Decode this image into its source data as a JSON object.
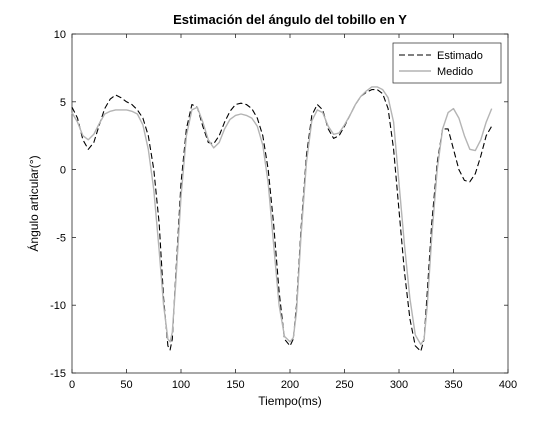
{
  "chart_data": {
    "type": "line",
    "title": "Estimación del ángulo del tobillo en Y",
    "xlabel": "Tiempo(ms)",
    "ylabel": "Ángulo articular(°)",
    "xlim": [
      0,
      400
    ],
    "ylim": [
      -15,
      10
    ],
    "xticks": [
      0,
      50,
      100,
      150,
      200,
      250,
      300,
      350,
      400
    ],
    "yticks": [
      -15,
      -10,
      -5,
      0,
      5,
      10
    ],
    "grid": false,
    "legend_position": "top-right",
    "series": [
      {
        "name": "Estimado",
        "style": "dashed",
        "color": "#000000",
        "x": [
          0,
          5,
          10,
          15,
          20,
          25,
          30,
          35,
          40,
          45,
          50,
          55,
          60,
          65,
          70,
          75,
          80,
          84,
          88,
          90,
          92,
          95,
          100,
          105,
          110,
          115,
          120,
          125,
          130,
          135,
          140,
          145,
          150,
          155,
          160,
          165,
          170,
          175,
          180,
          185,
          190,
          195,
          200,
          203,
          206,
          210,
          215,
          220,
          225,
          230,
          235,
          240,
          245,
          250,
          255,
          260,
          265,
          270,
          275,
          280,
          285,
          290,
          295,
          300,
          305,
          310,
          315,
          320,
          323,
          326,
          330,
          335,
          340,
          345,
          350,
          355,
          360,
          365,
          370,
          375,
          380,
          385
        ],
        "y": [
          4.6,
          3.8,
          2.2,
          1.5,
          2.0,
          3.3,
          4.5,
          5.2,
          5.5,
          5.3,
          5.0,
          4.8,
          4.4,
          3.8,
          2.5,
          0.0,
          -4.0,
          -9.5,
          -13.0,
          -13.3,
          -12.5,
          -8.0,
          -1.0,
          3.0,
          4.8,
          4.6,
          3.2,
          2.0,
          1.9,
          2.5,
          3.5,
          4.3,
          4.8,
          4.9,
          4.8,
          4.5,
          3.8,
          2.5,
          0.0,
          -4.0,
          -9.0,
          -12.5,
          -13.0,
          -12.5,
          -10.0,
          -4.5,
          1.0,
          4.0,
          4.8,
          4.4,
          3.0,
          2.3,
          2.5,
          3.2,
          4.0,
          4.8,
          5.4,
          5.7,
          5.9,
          5.9,
          5.6,
          4.5,
          1.5,
          -3.0,
          -7.5,
          -11.0,
          -13.0,
          -13.4,
          -12.5,
          -9.0,
          -4.0,
          0.5,
          3.0,
          3.0,
          1.5,
          0.0,
          -0.8,
          -0.9,
          -0.3,
          1.0,
          2.5,
          3.2
        ]
      },
      {
        "name": "Medido",
        "style": "solid",
        "color": "#b4b4b4",
        "x": [
          0,
          5,
          10,
          15,
          20,
          25,
          30,
          35,
          40,
          45,
          50,
          55,
          60,
          65,
          70,
          75,
          80,
          84,
          88,
          90,
          92,
          95,
          100,
          105,
          110,
          115,
          120,
          125,
          130,
          135,
          140,
          145,
          150,
          155,
          160,
          165,
          170,
          175,
          180,
          185,
          190,
          195,
          200,
          203,
          206,
          210,
          215,
          220,
          225,
          230,
          235,
          240,
          245,
          250,
          255,
          260,
          265,
          270,
          275,
          280,
          285,
          290,
          295,
          300,
          305,
          310,
          315,
          320,
          323,
          326,
          330,
          335,
          340,
          345,
          350,
          355,
          360,
          365,
          370,
          375,
          380,
          385
        ],
        "y": [
          4.2,
          3.5,
          2.5,
          2.2,
          2.6,
          3.4,
          4.1,
          4.3,
          4.4,
          4.4,
          4.4,
          4.3,
          4.1,
          3.3,
          1.5,
          -1.5,
          -6.0,
          -10.0,
          -12.5,
          -12.7,
          -12.0,
          -8.5,
          -2.0,
          2.5,
          4.4,
          4.6,
          3.5,
          2.2,
          1.6,
          2.0,
          3.0,
          3.7,
          4.0,
          4.1,
          4.0,
          3.8,
          3.2,
          1.8,
          -1.0,
          -5.5,
          -10.0,
          -12.3,
          -12.7,
          -12.4,
          -10.5,
          -5.0,
          0.5,
          3.6,
          4.4,
          4.2,
          3.2,
          2.6,
          2.7,
          3.3,
          4.0,
          4.8,
          5.4,
          5.8,
          6.1,
          6.1,
          5.9,
          5.3,
          3.5,
          -1.0,
          -5.5,
          -9.5,
          -12.2,
          -12.9,
          -12.5,
          -10.0,
          -5.0,
          0.0,
          3.0,
          4.2,
          4.5,
          3.8,
          2.5,
          1.5,
          1.4,
          2.2,
          3.5,
          4.5
        ]
      }
    ]
  }
}
